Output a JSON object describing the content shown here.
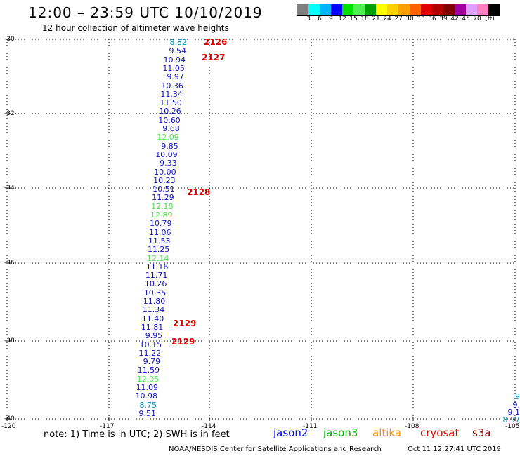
{
  "header": {
    "title": "12:00 – 23:59 UTC 10/10/2019",
    "subtitle": "12 hour collection of altimeter wave heights"
  },
  "colorbar": {
    "unit_label": "(ft)",
    "stops": [
      {
        "label": "",
        "color": "#808080"
      },
      {
        "label": "3",
        "color": "#00ffff"
      },
      {
        "label": "6",
        "color": "#00b4ff"
      },
      {
        "label": "9",
        "color": "#0000ff"
      },
      {
        "label": "12",
        "color": "#00e000"
      },
      {
        "label": "15",
        "color": "#50f050"
      },
      {
        "label": "18",
        "color": "#00a000"
      },
      {
        "label": "21",
        "color": "#ffff00"
      },
      {
        "label": "24",
        "color": "#ffd000"
      },
      {
        "label": "27",
        "color": "#ffa000"
      },
      {
        "label": "30",
        "color": "#ff6000"
      },
      {
        "label": "33",
        "color": "#e00000"
      },
      {
        "label": "36",
        "color": "#b00000"
      },
      {
        "label": "39",
        "color": "#800000"
      },
      {
        "label": "42",
        "color": "#a000a0"
      },
      {
        "label": "45",
        "color": "#e0a0ff"
      },
      {
        "label": "70",
        "color": "#ff80c0"
      },
      {
        "label": "",
        "color": "#000000"
      }
    ]
  },
  "axes": {
    "lat_labels": [
      "-30",
      "-32",
      "-34",
      "-36",
      "-38",
      "-40"
    ],
    "lon_labels": [
      "-120",
      "-117",
      "-114",
      "-111",
      "-108",
      "-105"
    ]
  },
  "measurements": [
    {
      "v": "8.82",
      "c": "#0090c0"
    },
    {
      "v": "9.54",
      "c": "#1010c0"
    },
    {
      "v": "10.94",
      "c": "#1010c0"
    },
    {
      "v": "11.05",
      "c": "#1010c0"
    },
    {
      "v": "9.97",
      "c": "#1010c0"
    },
    {
      "v": "10.36",
      "c": "#1010c0"
    },
    {
      "v": "11.34",
      "c": "#1010c0"
    },
    {
      "v": "11.50",
      "c": "#1010c0"
    },
    {
      "v": "10.26",
      "c": "#1010c0"
    },
    {
      "v": "10.60",
      "c": "#1010c0"
    },
    {
      "v": "9.68",
      "c": "#1010c0"
    },
    {
      "v": "12.09",
      "c": "#50e050"
    },
    {
      "v": "9.85",
      "c": "#1010c0"
    },
    {
      "v": "10.09",
      "c": "#1010c0"
    },
    {
      "v": "9.33",
      "c": "#1010c0"
    },
    {
      "v": "10.00",
      "c": "#1010c0"
    },
    {
      "v": "10.23",
      "c": "#1010c0"
    },
    {
      "v": "10.51",
      "c": "#1010c0"
    },
    {
      "v": "11.29",
      "c": "#1010c0"
    },
    {
      "v": "12.18",
      "c": "#50e050"
    },
    {
      "v": "12.89",
      "c": "#50e050"
    },
    {
      "v": "10.79",
      "c": "#1010c0"
    },
    {
      "v": "11.06",
      "c": "#1010c0"
    },
    {
      "v": "11.53",
      "c": "#1010c0"
    },
    {
      "v": "11.25",
      "c": "#1010c0"
    },
    {
      "v": "12.14",
      "c": "#50e050"
    },
    {
      "v": "11.16",
      "c": "#1010c0"
    },
    {
      "v": "11.71",
      "c": "#1010c0"
    },
    {
      "v": "10.26",
      "c": "#1010c0"
    },
    {
      "v": "10.35",
      "c": "#1010c0"
    },
    {
      "v": "11.80",
      "c": "#1010c0"
    },
    {
      "v": "11.34",
      "c": "#1010c0"
    },
    {
      "v": "11.40",
      "c": "#1010c0"
    },
    {
      "v": "11.81",
      "c": "#1010c0"
    },
    {
      "v": "9.95",
      "c": "#1010c0"
    },
    {
      "v": "10.15",
      "c": "#1010c0"
    },
    {
      "v": "11.22",
      "c": "#1010c0"
    },
    {
      "v": "9.79",
      "c": "#1010c0"
    },
    {
      "v": "11.59",
      "c": "#1010c0"
    },
    {
      "v": "12.05",
      "c": "#50e050"
    },
    {
      "v": "11.09",
      "c": "#1010c0"
    },
    {
      "v": "10.98",
      "c": "#1010c0"
    },
    {
      "v": "8.75",
      "c": "#0090c0"
    },
    {
      "v": "9.51",
      "c": "#1010c0"
    }
  ],
  "right_edge_measurements": [
    {
      "v": "9",
      "c": "#0090c0"
    },
    {
      "v": "9.",
      "c": "#1010c0"
    },
    {
      "v": "9.1",
      "c": "#1010c0"
    },
    {
      "v": "8.97",
      "c": "#0090c0"
    }
  ],
  "passes": [
    "2126",
    "2127",
    "2128",
    "2129",
    "2129"
  ],
  "footer": {
    "note": "note: 1) Time is in UTC; 2) SWH is in feet",
    "legend": [
      {
        "name": "jason2",
        "color": "#0000ff"
      },
      {
        "name": "jason3",
        "color": "#00b000"
      },
      {
        "name": "altika",
        "color": "#ff9000"
      },
      {
        "name": "cryosat",
        "color": "#e00000"
      },
      {
        "name": "s3a",
        "color": "#800000"
      }
    ],
    "credit": "NOAA/NESDIS Center for Satellite Applications and Research",
    "timestamp": "Oct 11 12:27:41 UTC 2019"
  }
}
